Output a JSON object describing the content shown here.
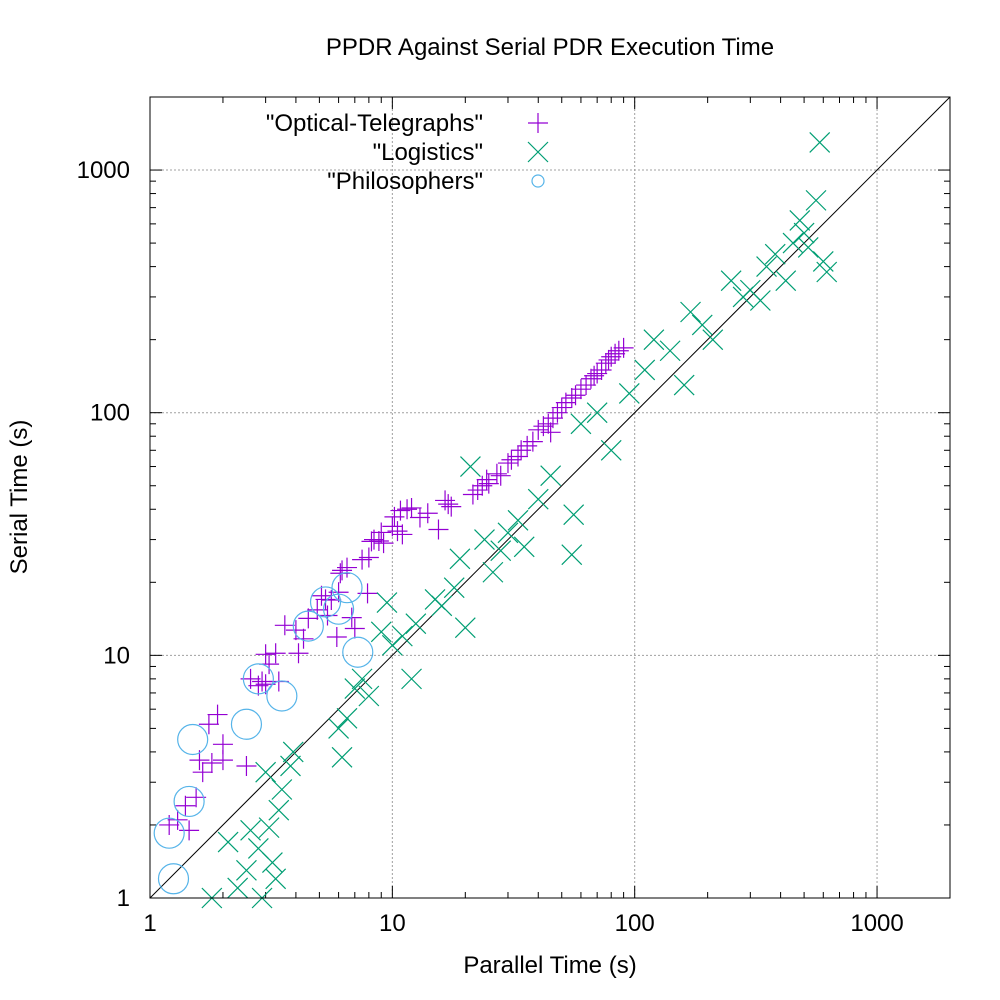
{
  "chart_data": {
    "type": "scatter",
    "title": "PPDR Against Serial PDR Execution Time",
    "xlabel": "Parallel Time (s)",
    "ylabel": "Serial Time (s)",
    "xscale": "log",
    "yscale": "log",
    "xlim": [
      1,
      2000
    ],
    "ylim": [
      1,
      2000
    ],
    "xticks": [
      1,
      10,
      100,
      1000
    ],
    "yticks": [
      1,
      10,
      100,
      1000
    ],
    "xtick_labels": [
      "1",
      "10",
      "100",
      "1000"
    ],
    "ytick_labels": [
      "1",
      "10",
      "100",
      "1000"
    ],
    "grid": true,
    "legend_position": "top-left",
    "reference_line": "y = x",
    "series": [
      {
        "name": "\"Optical-Telegraphs\"",
        "marker": "plus",
        "color": "#9400d3",
        "points": [
          [
            1.2,
            2.0
          ],
          [
            1.3,
            2.1
          ],
          [
            1.4,
            2.4
          ],
          [
            1.45,
            1.9
          ],
          [
            1.55,
            2.6
          ],
          [
            1.6,
            3.7
          ],
          [
            1.65,
            3.3
          ],
          [
            1.75,
            5.2
          ],
          [
            1.8,
            3.6
          ],
          [
            1.9,
            5.7
          ],
          [
            2.0,
            3.7
          ],
          [
            2.0,
            4.3
          ],
          [
            2.5,
            3.5
          ],
          [
            2.6,
            8.0
          ],
          [
            2.8,
            7.5
          ],
          [
            2.9,
            7.8
          ],
          [
            3.0,
            10.1
          ],
          [
            3.0,
            7.6
          ],
          [
            3.1,
            9.2
          ],
          [
            3.3,
            10.2
          ],
          [
            3.4,
            7.8
          ],
          [
            3.6,
            13.3
          ],
          [
            4.0,
            12.7
          ],
          [
            4.1,
            10.2
          ],
          [
            4.3,
            11.7
          ],
          [
            4.5,
            14.2
          ],
          [
            4.9,
            15.4
          ],
          [
            5.1,
            17.6
          ],
          [
            5.3,
            17.0
          ],
          [
            5.4,
            14.6
          ],
          [
            5.6,
            16.9
          ],
          [
            5.9,
            11.9
          ],
          [
            6.0,
            18.2
          ],
          [
            6.1,
            21.8
          ],
          [
            6.2,
            22.4
          ],
          [
            6.5,
            23.0
          ],
          [
            6.8,
            14.3
          ],
          [
            7.0,
            12.9
          ],
          [
            7.5,
            24.8
          ],
          [
            7.9,
            18.0
          ],
          [
            8.0,
            25.3
          ],
          [
            8.2,
            29.5
          ],
          [
            8.4,
            30.0
          ],
          [
            8.8,
            29.6
          ],
          [
            9.0,
            32.1
          ],
          [
            9.2,
            29.0
          ],
          [
            10.0,
            34.0
          ],
          [
            10.2,
            37.2
          ],
          [
            10.5,
            32.5
          ],
          [
            10.8,
            39.5
          ],
          [
            11.0,
            31.5
          ],
          [
            11.5,
            40.0
          ],
          [
            12.0,
            40.5
          ],
          [
            13.0,
            37.0
          ],
          [
            14.0,
            38.5
          ],
          [
            15.5,
            33.0
          ],
          [
            16.5,
            43.5
          ],
          [
            17.0,
            42.0
          ],
          [
            17.5,
            41.0
          ],
          [
            21.5,
            46.0
          ],
          [
            22.5,
            48.0
          ],
          [
            23.5,
            50.0
          ],
          [
            24.5,
            53.0
          ],
          [
            25.0,
            51.0
          ],
          [
            27.0,
            56.0
          ],
          [
            28.0,
            55.0
          ],
          [
            30.0,
            62.0
          ],
          [
            31.0,
            64.0
          ],
          [
            33.0,
            66.0
          ],
          [
            34.0,
            70.0
          ],
          [
            36.0,
            73.0
          ],
          [
            38.0,
            76.0
          ],
          [
            40.0,
            85.0
          ],
          [
            42.0,
            88.0
          ],
          [
            44.0,
            90.0
          ],
          [
            45.0,
            83.0
          ],
          [
            46.0,
            95.0
          ],
          [
            48.0,
            100.0
          ],
          [
            50.0,
            105.0
          ],
          [
            52.0,
            110.0
          ],
          [
            55.0,
            115.0
          ],
          [
            57.0,
            118.0
          ],
          [
            60.0,
            125.0
          ],
          [
            63.0,
            130.0
          ],
          [
            66.0,
            138.0
          ],
          [
            68.0,
            142.0
          ],
          [
            70.0,
            145.0
          ],
          [
            73.0,
            150.0
          ],
          [
            76.0,
            160.0
          ],
          [
            78.0,
            165.0
          ],
          [
            80.0,
            170.0
          ],
          [
            83.0,
            175.0
          ],
          [
            86.0,
            180.0
          ],
          [
            90.0,
            185.0
          ]
        ]
      },
      {
        "name": "\"Logistics\"",
        "marker": "x",
        "color": "#009e73",
        "points": [
          [
            1.8,
            1.0
          ],
          [
            2.1,
            1.7
          ],
          [
            2.3,
            1.1
          ],
          [
            2.5,
            1.3
          ],
          [
            2.6,
            1.9
          ],
          [
            2.8,
            1.6
          ],
          [
            2.9,
            1.0
          ],
          [
            3.0,
            3.3
          ],
          [
            3.1,
            1.95
          ],
          [
            3.2,
            1.4
          ],
          [
            3.3,
            1.2
          ],
          [
            3.4,
            2.3
          ],
          [
            3.5,
            2.8
          ],
          [
            3.8,
            3.5
          ],
          [
            3.9,
            4.0
          ],
          [
            6.2,
            3.8
          ],
          [
            6.0,
            5.0
          ],
          [
            6.5,
            5.5
          ],
          [
            7.0,
            7.3
          ],
          [
            7.5,
            8.0
          ],
          [
            8.0,
            6.8
          ],
          [
            9.0,
            12.5
          ],
          [
            9.5,
            16.5
          ],
          [
            10.0,
            11.0
          ],
          [
            11.0,
            12.0
          ],
          [
            12.0,
            8.0
          ],
          [
            12.5,
            13.5
          ],
          [
            15.0,
            17.0
          ],
          [
            16.0,
            16.0
          ],
          [
            18.0,
            19.0
          ],
          [
            19.0,
            25.0
          ],
          [
            20.0,
            13.0
          ],
          [
            21.0,
            60.0
          ],
          [
            24.0,
            30.0
          ],
          [
            26.0,
            22.0
          ],
          [
            28.0,
            27.0
          ],
          [
            30.0,
            32.0
          ],
          [
            33.0,
            36.0
          ],
          [
            35.0,
            28.0
          ],
          [
            40.0,
            44.0
          ],
          [
            45.0,
            55.0
          ],
          [
            55.0,
            26.0
          ],
          [
            56.0,
            38.0
          ],
          [
            60.0,
            90.0
          ],
          [
            70.0,
            100.0
          ],
          [
            80.0,
            70.0
          ],
          [
            95.0,
            120.0
          ],
          [
            110.0,
            150.0
          ],
          [
            120.0,
            200.0
          ],
          [
            140.0,
            180.0
          ],
          [
            160.0,
            130.0
          ],
          [
            170.0,
            260.0
          ],
          [
            190.0,
            230.0
          ],
          [
            210.0,
            200.0
          ],
          [
            250.0,
            350.0
          ],
          [
            280.0,
            300.0
          ],
          [
            300.0,
            320.0
          ],
          [
            330.0,
            290.0
          ],
          [
            350.0,
            400.0
          ],
          [
            380.0,
            450.0
          ],
          [
            420.0,
            350.0
          ],
          [
            450.0,
            500.0
          ],
          [
            480.0,
            620.0
          ],
          [
            500.0,
            550.0
          ],
          [
            520.0,
            480.0
          ],
          [
            560.0,
            750.0
          ],
          [
            580.0,
            1300.0
          ],
          [
            600.0,
            420.0
          ],
          [
            620.0,
            380.0
          ]
        ]
      },
      {
        "name": "\"Philosophers\"",
        "marker": "circle",
        "color": "#56b4e9",
        "points": [
          [
            1.2,
            1.85
          ],
          [
            1.25,
            1.2
          ],
          [
            1.45,
            2.5
          ],
          [
            1.5,
            4.5
          ],
          [
            2.5,
            5.2
          ],
          [
            2.8,
            8.0
          ],
          [
            3.5,
            6.8
          ],
          [
            4.5,
            13.2
          ],
          [
            5.3,
            16.6
          ],
          [
            6.0,
            15.5
          ],
          [
            6.5,
            19.0
          ],
          [
            7.2,
            10.3
          ]
        ]
      }
    ]
  }
}
